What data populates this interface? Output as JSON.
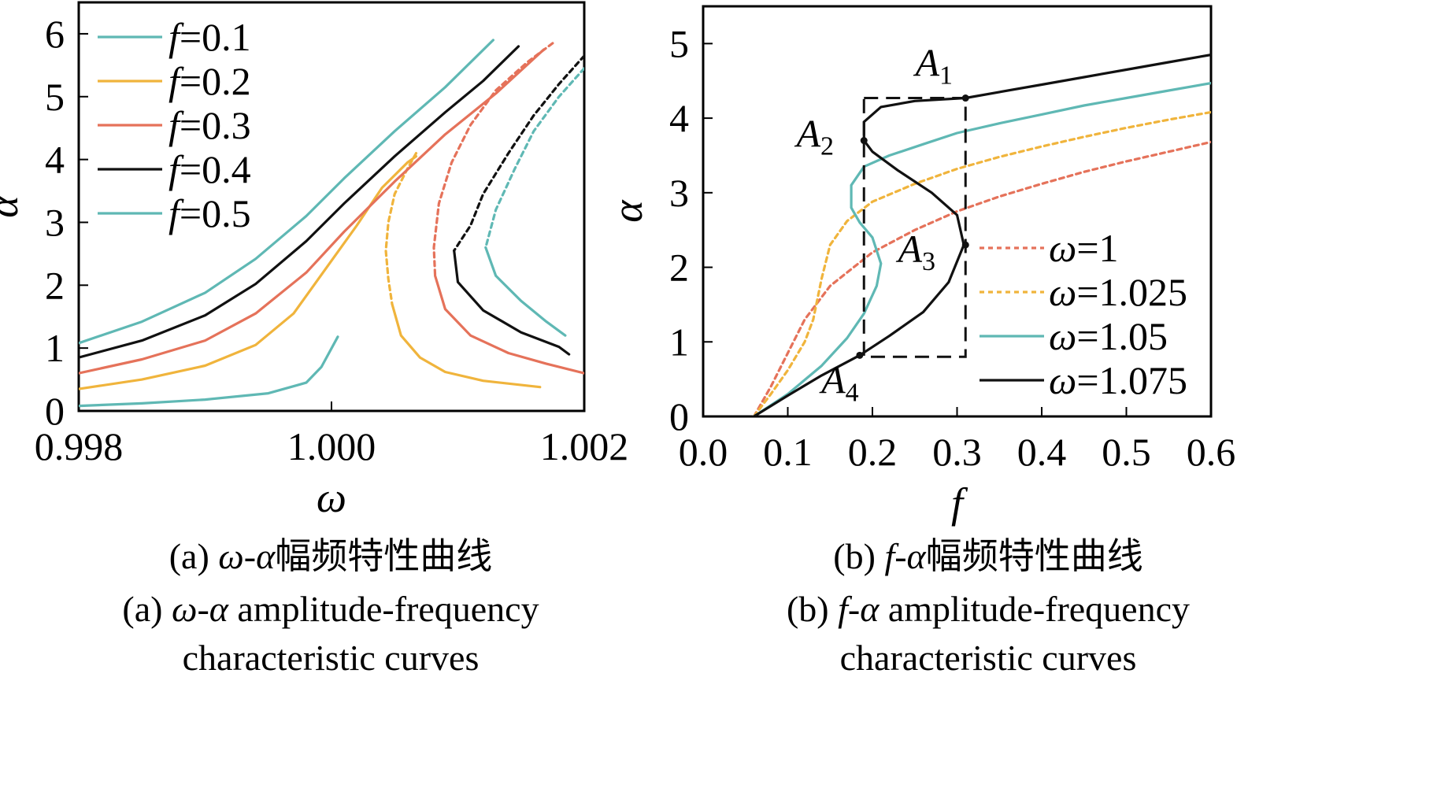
{
  "chart_data": [
    {
      "type": "line",
      "panel": "a",
      "xlabel": "ω",
      "ylabel": "α",
      "xlim": [
        0.998,
        1.002
      ],
      "ylim": [
        0,
        6.5
      ],
      "xticks": [
        0.998,
        1.0,
        1.002
      ],
      "xtick_labels": [
        "0.998",
        "1.000",
        "1.002"
      ],
      "yticks": [
        0,
        1,
        2,
        3,
        4,
        5,
        6
      ],
      "ytick_labels": [
        "0",
        "1",
        "2",
        "3",
        "4",
        "5",
        "6"
      ],
      "legend_position": "top-left",
      "caption_cn": "(a) ω-α幅频特性曲线",
      "caption_en_1": "(a) ω-α amplitude-frequency",
      "caption_en_2": "characteristic curves",
      "series": [
        {
          "name": "f=0.1",
          "color": "#5fb8b4",
          "branches": [
            {
              "dash": false,
              "points": [
                [
                  0.998,
                  0.08
                ],
                [
                  0.9985,
                  0.12
                ],
                [
                  0.999,
                  0.18
                ],
                [
                  0.9995,
                  0.28
                ],
                [
                  0.9998,
                  0.45
                ],
                [
                  0.99992,
                  0.7
                ],
                [
                  1.00005,
                  1.18
                ]
              ]
            }
          ]
        },
        {
          "name": "f=0.2",
          "color": "#f0b43c",
          "branches": [
            {
              "dash": false,
              "points": [
                [
                  0.998,
                  0.35
                ],
                [
                  0.9985,
                  0.5
                ],
                [
                  0.999,
                  0.72
                ],
                [
                  0.9994,
                  1.05
                ],
                [
                  0.9997,
                  1.55
                ],
                [
                  0.99995,
                  2.25
                ],
                [
                  1.0002,
                  2.95
                ],
                [
                  1.0004,
                  3.55
                ],
                [
                  1.0006,
                  3.95
                ],
                [
                  1.00067,
                  4.05
                ]
              ]
            },
            {
              "dash": true,
              "points": [
                [
                  1.00067,
                  4.1
                ],
                [
                  1.0006,
                  3.85
                ],
                [
                  1.0005,
                  3.45
                ],
                [
                  1.00045,
                  3.0
                ],
                [
                  1.00043,
                  2.55
                ],
                [
                  1.00045,
                  2.1
                ],
                [
                  1.00048,
                  1.7
                ]
              ]
            },
            {
              "dash": false,
              "points": [
                [
                  1.00048,
                  1.7
                ],
                [
                  1.00055,
                  1.2
                ],
                [
                  1.0007,
                  0.85
                ],
                [
                  1.0009,
                  0.62
                ],
                [
                  1.0012,
                  0.48
                ],
                [
                  1.00165,
                  0.38
                ]
              ]
            }
          ]
        },
        {
          "name": "f=0.3",
          "color": "#e5725a",
          "branches": [
            {
              "dash": false,
              "points": [
                [
                  0.998,
                  0.6
                ],
                [
                  0.9985,
                  0.82
                ],
                [
                  0.999,
                  1.12
                ],
                [
                  0.9994,
                  1.55
                ],
                [
                  0.9998,
                  2.2
                ],
                [
                  1.0001,
                  2.85
                ],
                [
                  1.0005,
                  3.65
                ],
                [
                  1.0009,
                  4.4
                ],
                [
                  1.0013,
                  5.05
                ],
                [
                  1.00168,
                  5.75
                ]
              ]
            },
            {
              "dash": true,
              "points": [
                [
                  1.00175,
                  5.85
                ],
                [
                  1.00155,
                  5.55
                ],
                [
                  1.0013,
                  5.1
                ],
                [
                  1.0011,
                  4.55
                ],
                [
                  1.00095,
                  3.95
                ],
                [
                  1.00085,
                  3.3
                ],
                [
                  1.00081,
                  2.6
                ],
                [
                  1.00082,
                  2.15
                ]
              ]
            },
            {
              "dash": false,
              "points": [
                [
                  1.00082,
                  2.15
                ],
                [
                  1.0009,
                  1.62
                ],
                [
                  1.0011,
                  1.2
                ],
                [
                  1.0014,
                  0.92
                ],
                [
                  1.0017,
                  0.75
                ],
                [
                  1.002,
                  0.6
                ]
              ]
            }
          ]
        },
        {
          "name": "f=0.4",
          "color": "#111111",
          "branches": [
            {
              "dash": false,
              "points": [
                [
                  0.998,
                  0.85
                ],
                [
                  0.9985,
                  1.12
                ],
                [
                  0.999,
                  1.52
                ],
                [
                  0.9994,
                  2.02
                ],
                [
                  0.9998,
                  2.7
                ],
                [
                  1.0001,
                  3.3
                ],
                [
                  1.0005,
                  4.05
                ],
                [
                  1.0009,
                  4.75
                ],
                [
                  1.0012,
                  5.25
                ],
                [
                  1.00148,
                  5.8
                ]
              ]
            },
            {
              "dash": true,
              "points": [
                [
                  1.002,
                  5.65
                ],
                [
                  1.0018,
                  5.2
                ],
                [
                  1.0016,
                  4.7
                ],
                [
                  1.0014,
                  4.1
                ],
                [
                  1.0012,
                  3.45
                ],
                [
                  1.0011,
                  2.95
                ],
                [
                  1.00097,
                  2.55
                ]
              ]
            },
            {
              "dash": false,
              "points": [
                [
                  1.00097,
                  2.55
                ],
                [
                  1.001,
                  2.05
                ],
                [
                  1.0012,
                  1.6
                ],
                [
                  1.0015,
                  1.25
                ],
                [
                  1.0018,
                  1.02
                ],
                [
                  1.00188,
                  0.9
                ]
              ]
            }
          ]
        },
        {
          "name": "f=0.5",
          "color": "#5fb8b4",
          "branches": [
            {
              "dash": false,
              "points": [
                [
                  0.998,
                  1.08
                ],
                [
                  0.9985,
                  1.42
                ],
                [
                  0.999,
                  1.88
                ],
                [
                  0.9994,
                  2.42
                ],
                [
                  0.9998,
                  3.1
                ],
                [
                  1.0001,
                  3.7
                ],
                [
                  1.0005,
                  4.45
                ],
                [
                  1.0009,
                  5.15
                ],
                [
                  1.00128,
                  5.9
                ]
              ]
            },
            {
              "dash": true,
              "points": [
                [
                  1.002,
                  5.45
                ],
                [
                  1.0018,
                  5.0
                ],
                [
                  1.0016,
                  4.45
                ],
                [
                  1.00145,
                  3.85
                ],
                [
                  1.0013,
                  3.2
                ],
                [
                  1.00122,
                  2.6
                ]
              ]
            },
            {
              "dash": false,
              "points": [
                [
                  1.00122,
                  2.6
                ],
                [
                  1.0013,
                  2.15
                ],
                [
                  1.0015,
                  1.75
                ],
                [
                  1.0017,
                  1.42
                ],
                [
                  1.00185,
                  1.2
                ]
              ]
            }
          ]
        }
      ]
    },
    {
      "type": "line",
      "panel": "b",
      "xlabel": "f",
      "ylabel": "α",
      "xlim": [
        0,
        0.6
      ],
      "ylim": [
        0,
        5.5
      ],
      "xticks": [
        0,
        0.1,
        0.2,
        0.3,
        0.4,
        0.5,
        0.6
      ],
      "xtick_labels": [
        "0.0",
        "0.1",
        "0.2",
        "0.3",
        "0.4",
        "0.5",
        "0.6"
      ],
      "yticks": [
        0,
        1,
        2,
        3,
        4,
        5
      ],
      "ytick_labels": [
        "0",
        "1",
        "2",
        "3",
        "4",
        "5"
      ],
      "legend_position": "bottom-right",
      "caption_cn": "(b) f-α幅频特性曲线",
      "caption_en_1": "(b) f-α amplitude-frequency",
      "caption_en_2": "characteristic curves",
      "points_labeled": [
        {
          "label": "A",
          "sub": "1",
          "x": 0.31,
          "y": 4.27
        },
        {
          "label": "A",
          "sub": "2",
          "x": 0.19,
          "y": 3.7
        },
        {
          "label": "A",
          "sub": "3",
          "x": 0.31,
          "y": 2.3
        },
        {
          "label": "A",
          "sub": "4",
          "x": 0.185,
          "y": 0.82
        }
      ],
      "box": {
        "x": [
          0.19,
          0.31
        ],
        "y": [
          0.8,
          4.27
        ]
      },
      "series": [
        {
          "name": "ω=1",
          "color": "#e5725a",
          "dash": true,
          "points": [
            [
              0.06,
              0
            ],
            [
              0.08,
              0.4
            ],
            [
              0.1,
              0.85
            ],
            [
              0.12,
              1.3
            ],
            [
              0.15,
              1.75
            ],
            [
              0.2,
              2.2
            ],
            [
              0.25,
              2.5
            ],
            [
              0.3,
              2.75
            ],
            [
              0.35,
              2.95
            ],
            [
              0.4,
              3.12
            ],
            [
              0.45,
              3.28
            ],
            [
              0.5,
              3.42
            ],
            [
              0.55,
              3.55
            ],
            [
              0.6,
              3.68
            ]
          ]
        },
        {
          "name": "ω=1.025",
          "color": "#f0b43c",
          "dash": true,
          "points": [
            [
              0.06,
              0
            ],
            [
              0.08,
              0.3
            ],
            [
              0.1,
              0.62
            ],
            [
              0.12,
              1.0
            ],
            [
              0.13,
              1.3
            ],
            [
              0.14,
              1.85
            ],
            [
              0.15,
              2.3
            ],
            [
              0.17,
              2.62
            ],
            [
              0.2,
              2.88
            ],
            [
              0.25,
              3.12
            ],
            [
              0.3,
              3.32
            ],
            [
              0.35,
              3.48
            ],
            [
              0.4,
              3.62
            ],
            [
              0.45,
              3.75
            ],
            [
              0.5,
              3.87
            ],
            [
              0.55,
              3.98
            ],
            [
              0.6,
              4.08
            ]
          ]
        },
        {
          "name": "ω=1.05",
          "color": "#5fb8b4",
          "dash": false,
          "points": [
            [
              0.06,
              0
            ],
            [
              0.1,
              0.3
            ],
            [
              0.14,
              0.68
            ],
            [
              0.17,
              1.05
            ],
            [
              0.19,
              1.38
            ],
            [
              0.205,
              1.75
            ],
            [
              0.21,
              2.05
            ],
            [
              0.2,
              2.4
            ],
            [
              0.185,
              2.6
            ],
            [
              0.175,
              2.8
            ],
            [
              0.175,
              3.1
            ],
            [
              0.19,
              3.35
            ],
            [
              0.22,
              3.5
            ],
            [
              0.26,
              3.65
            ],
            [
              0.3,
              3.8
            ],
            [
              0.35,
              3.93
            ],
            [
              0.4,
              4.05
            ],
            [
              0.45,
              4.17
            ],
            [
              0.5,
              4.27
            ],
            [
              0.55,
              4.37
            ],
            [
              0.6,
              4.47
            ]
          ]
        },
        {
          "name": "ω=1.075",
          "color": "#111111",
          "dash": false,
          "points": [
            [
              0.06,
              0
            ],
            [
              0.1,
              0.28
            ],
            [
              0.14,
              0.55
            ],
            [
              0.185,
              0.82
            ],
            [
              0.22,
              1.08
            ],
            [
              0.26,
              1.4
            ],
            [
              0.29,
              1.8
            ],
            [
              0.308,
              2.3
            ],
            [
              0.3,
              2.7
            ],
            [
              0.27,
              3.0
            ],
            [
              0.23,
              3.3
            ],
            [
              0.2,
              3.55
            ],
            [
              0.19,
              3.7
            ],
            [
              0.19,
              3.95
            ],
            [
              0.21,
              4.15
            ],
            [
              0.25,
              4.23
            ],
            [
              0.31,
              4.27
            ],
            [
              0.35,
              4.35
            ],
            [
              0.4,
              4.45
            ],
            [
              0.45,
              4.55
            ],
            [
              0.5,
              4.65
            ],
            [
              0.55,
              4.75
            ],
            [
              0.6,
              4.85
            ]
          ]
        }
      ]
    }
  ]
}
